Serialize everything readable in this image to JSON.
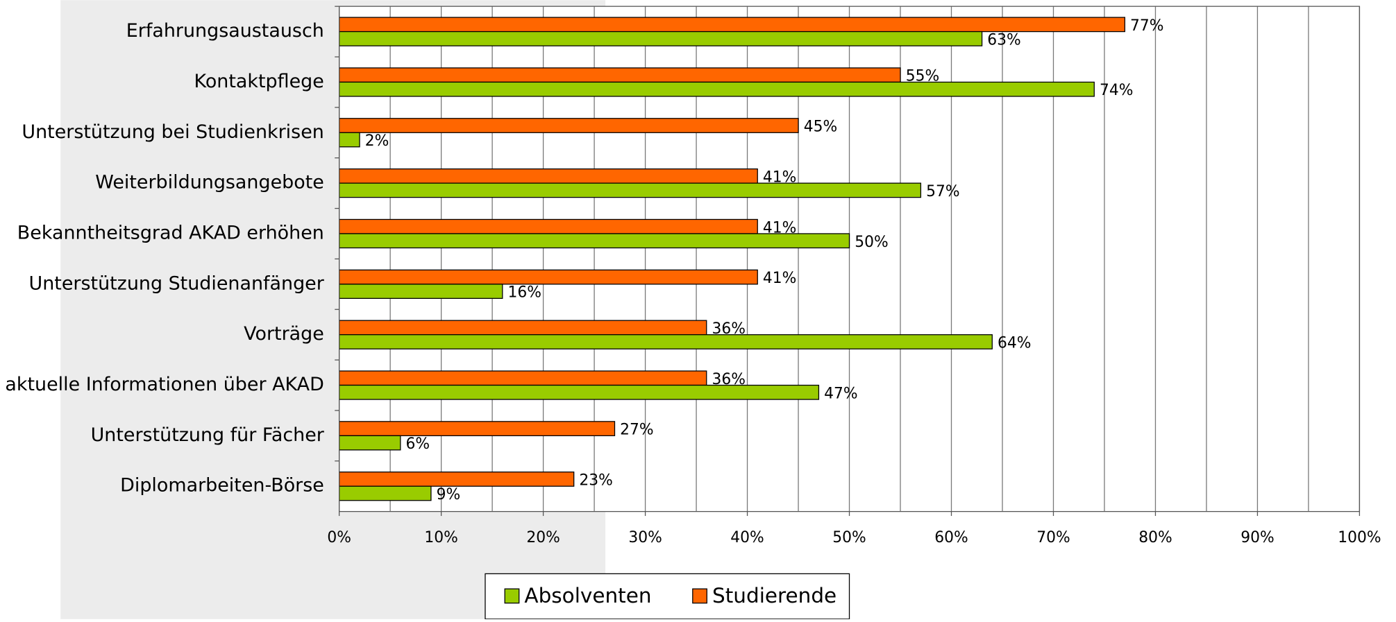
{
  "chart_data": {
    "type": "hbar",
    "categories": [
      "Erfahrungsaustausch",
      "Kontaktpflege",
      "Unterstützung bei Studienkrisen",
      "Weiterbildungsangebote",
      "Bekanntheitsgrad AKAD erhöhen",
      "Unterstützung Studienanfänger",
      "Vorträge",
      "aktuelle Informationen über AKAD",
      "Unterstützung für Fächer",
      "Diplomarbeiten-Börse"
    ],
    "series": [
      {
        "name": "Studierende",
        "color": "#ff6600",
        "values": [
          77,
          55,
          45,
          41,
          41,
          41,
          36,
          36,
          27,
          23
        ],
        "value_labels": [
          "77%",
          "55%",
          "45%",
          "41%",
          "41%",
          "41%",
          "36%",
          "36%",
          "27%",
          "23%"
        ]
      },
      {
        "name": "Absolventen",
        "color": "#99cc00",
        "values": [
          63,
          74,
          2,
          57,
          50,
          16,
          64,
          47,
          6,
          9
        ],
        "value_labels": [
          "63%",
          "74%",
          "2%",
          "57%",
          "50%",
          "16%",
          "64%",
          "47%",
          "6%",
          "9%"
        ]
      }
    ],
    "xlim": [
      0,
      100
    ],
    "xticks": [
      {
        "value": 0,
        "label": "0%"
      },
      {
        "value": 10,
        "label": "10%"
      },
      {
        "value": 20,
        "label": "20%"
      },
      {
        "value": 30,
        "label": "30%"
      },
      {
        "value": 40,
        "label": "40%"
      },
      {
        "value": 50,
        "label": "50%"
      },
      {
        "value": 60,
        "label": "60%"
      },
      {
        "value": 70,
        "label": "70%"
      },
      {
        "value": 80,
        "label": "80%"
      },
      {
        "value": 90,
        "label": "90%"
      },
      {
        "value": 100,
        "label": "100%"
      }
    ],
    "xminor": [
      5,
      15,
      25,
      35,
      45,
      55,
      65,
      75,
      85,
      95
    ],
    "grid": true,
    "legend": "bottom"
  }
}
